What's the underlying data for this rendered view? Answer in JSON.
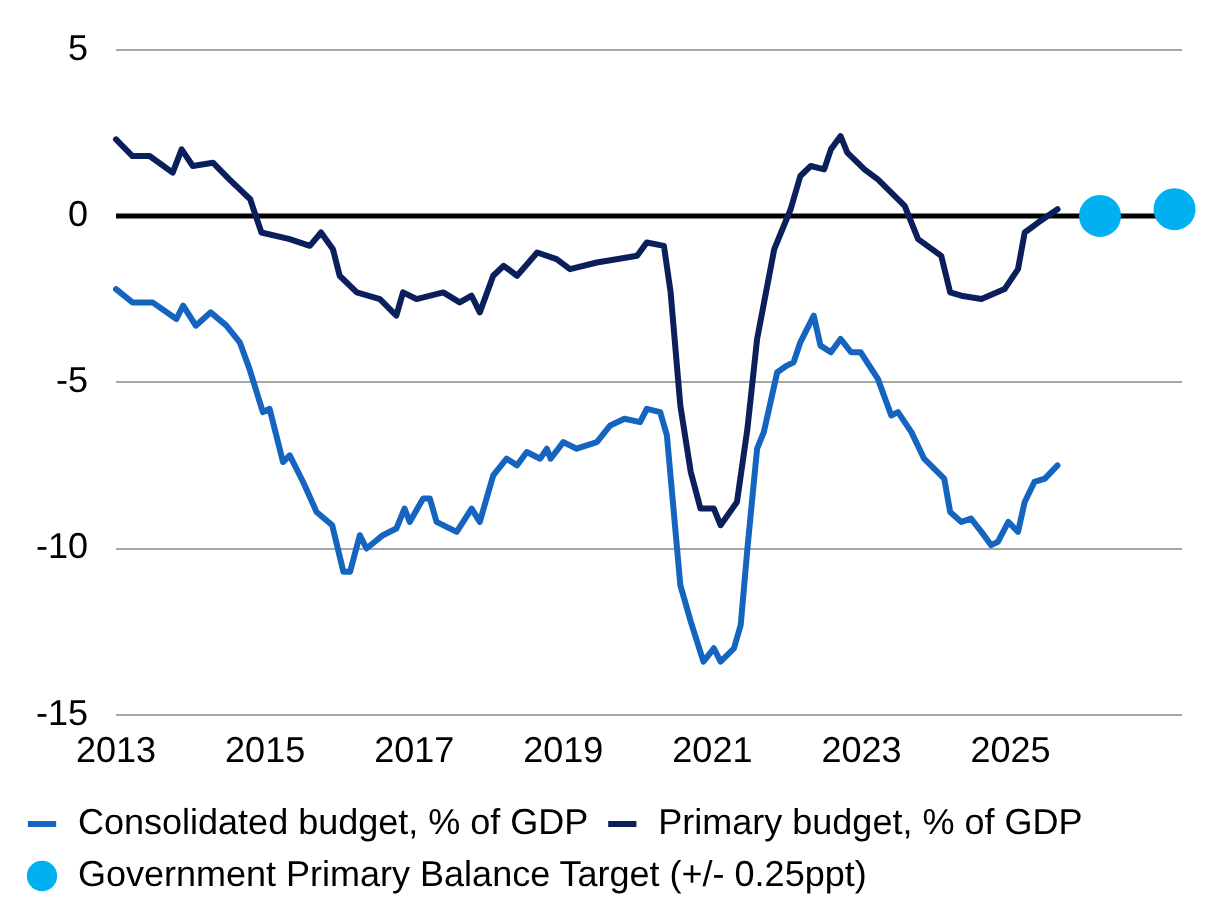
{
  "chart_data": {
    "type": "line",
    "xlim": [
      2013,
      2027.3
    ],
    "xticks": [
      2013,
      2015,
      2017,
      2019,
      2021,
      2023,
      2025
    ],
    "ylim": [
      -15,
      5
    ],
    "yticks": [
      -15,
      -10,
      -5,
      0,
      5
    ],
    "grid": "y",
    "legend": "bottom",
    "ref_lines": [
      {
        "axis": "y",
        "value": 0,
        "color": "#000000"
      }
    ],
    "series": [
      {
        "name": "Consolidated budget, % of GDP",
        "color": "#1565c0",
        "marker": "none",
        "x": [
          2013.0,
          2013.22,
          2013.49,
          2013.81,
          2013.9,
          2014.07,
          2014.27,
          2014.48,
          2014.66,
          2014.79,
          2014.97,
          2015.06,
          2015.24,
          2015.33,
          2015.51,
          2015.69,
          2015.9,
          2016.05,
          2016.14,
          2016.27,
          2016.36,
          2016.58,
          2016.76,
          2016.87,
          2016.94,
          2017.12,
          2017.21,
          2017.3,
          2017.57,
          2017.77,
          2017.88,
          2018.06,
          2018.24,
          2018.38,
          2018.51,
          2018.69,
          2018.78,
          2018.83,
          2019.0,
          2019.18,
          2019.45,
          2019.63,
          2019.82,
          2020.03,
          2020.12,
          2020.3,
          2020.39,
          2020.57,
          2020.71,
          2020.88,
          2021.02,
          2021.11,
          2021.29,
          2021.38,
          2021.47,
          2021.6,
          2021.69,
          2021.87,
          2022.0,
          2022.09,
          2022.18,
          2022.36,
          2022.45,
          2022.59,
          2022.72,
          2022.86,
          2022.99,
          2023.22,
          2023.4,
          2023.49,
          2023.67,
          2023.84,
          2024.11,
          2024.19,
          2024.34,
          2024.47,
          2024.61,
          2024.74,
          2024.83,
          2024.97,
          2025.1,
          2025.19,
          2025.32,
          2025.46,
          2025.63
        ],
        "values": [
          -2.2,
          -2.6,
          -2.6,
          -3.1,
          -2.7,
          -3.3,
          -2.9,
          -3.3,
          -3.8,
          -4.6,
          -5.9,
          -5.8,
          -7.4,
          -7.2,
          -8.0,
          -8.9,
          -9.3,
          -10.7,
          -10.7,
          -9.6,
          -10.0,
          -9.6,
          -9.4,
          -8.8,
          -9.2,
          -8.5,
          -8.5,
          -9.2,
          -9.5,
          -8.8,
          -9.2,
          -7.8,
          -7.3,
          -7.5,
          -7.1,
          -7.3,
          -7.0,
          -7.3,
          -6.8,
          -7.0,
          -6.8,
          -6.3,
          -6.1,
          -6.2,
          -5.8,
          -5.9,
          -6.6,
          -11.1,
          -12.2,
          -13.4,
          -13.0,
          -13.4,
          -13.0,
          -12.3,
          -10.0,
          -7.0,
          -6.5,
          -4.7,
          -4.5,
          -4.4,
          -3.8,
          -3.0,
          -3.9,
          -4.1,
          -3.7,
          -4.1,
          -4.1,
          -4.9,
          -6.0,
          -5.9,
          -6.5,
          -7.3,
          -7.9,
          -8.9,
          -9.2,
          -9.1,
          -9.5,
          -9.9,
          -9.8,
          -9.2,
          -9.5,
          -8.6,
          -8.0,
          -7.9,
          -7.5
        ]
      },
      {
        "name": "Primary budget, % of GDP",
        "color": "#0b1f5c",
        "marker": "none",
        "x": [
          2013.0,
          2013.22,
          2013.45,
          2013.76,
          2013.88,
          2014.03,
          2014.3,
          2014.52,
          2014.8,
          2014.95,
          2015.33,
          2015.6,
          2015.75,
          2015.91,
          2016.0,
          2016.23,
          2016.54,
          2016.76,
          2016.85,
          2017.03,
          2017.39,
          2017.61,
          2017.77,
          2017.88,
          2018.06,
          2018.2,
          2018.38,
          2018.65,
          2018.91,
          2019.09,
          2019.45,
          2019.99,
          2020.12,
          2020.35,
          2020.44,
          2020.57,
          2020.71,
          2020.84,
          2021.02,
          2021.11,
          2021.33,
          2021.47,
          2021.6,
          2021.83,
          2022.05,
          2022.18,
          2022.32,
          2022.5,
          2022.59,
          2022.72,
          2022.81,
          2023.04,
          2023.22,
          2023.58,
          2023.76,
          2024.07,
          2024.19,
          2024.34,
          2024.61,
          2024.92,
          2025.1,
          2025.19,
          2025.37,
          2025.63
        ],
        "values": [
          2.3,
          1.8,
          1.8,
          1.3,
          2.0,
          1.5,
          1.6,
          1.1,
          0.5,
          -0.5,
          -0.7,
          -0.9,
          -0.5,
          -1.0,
          -1.8,
          -2.3,
          -2.5,
          -3.0,
          -2.3,
          -2.5,
          -2.3,
          -2.6,
          -2.4,
          -2.9,
          -1.8,
          -1.5,
          -1.8,
          -1.1,
          -1.3,
          -1.6,
          -1.4,
          -1.2,
          -0.8,
          -0.9,
          -2.3,
          -5.7,
          -7.7,
          -8.8,
          -8.8,
          -9.3,
          -8.6,
          -6.4,
          -3.7,
          -1.0,
          0.2,
          1.2,
          1.5,
          1.4,
          2.0,
          2.4,
          1.9,
          1.4,
          1.1,
          0.3,
          -0.7,
          -1.2,
          -2.3,
          -2.4,
          -2.5,
          -2.2,
          -1.6,
          -0.5,
          -0.2,
          0.2
        ]
      },
      {
        "name": "Government Primary Balance Target (+/- 0.25ppt)",
        "color": "#00b0f0",
        "type": "scatter",
        "marker": "circle",
        "x": [
          2026.2,
          2027.2
        ],
        "values": [
          0,
          0.2
        ]
      }
    ]
  }
}
